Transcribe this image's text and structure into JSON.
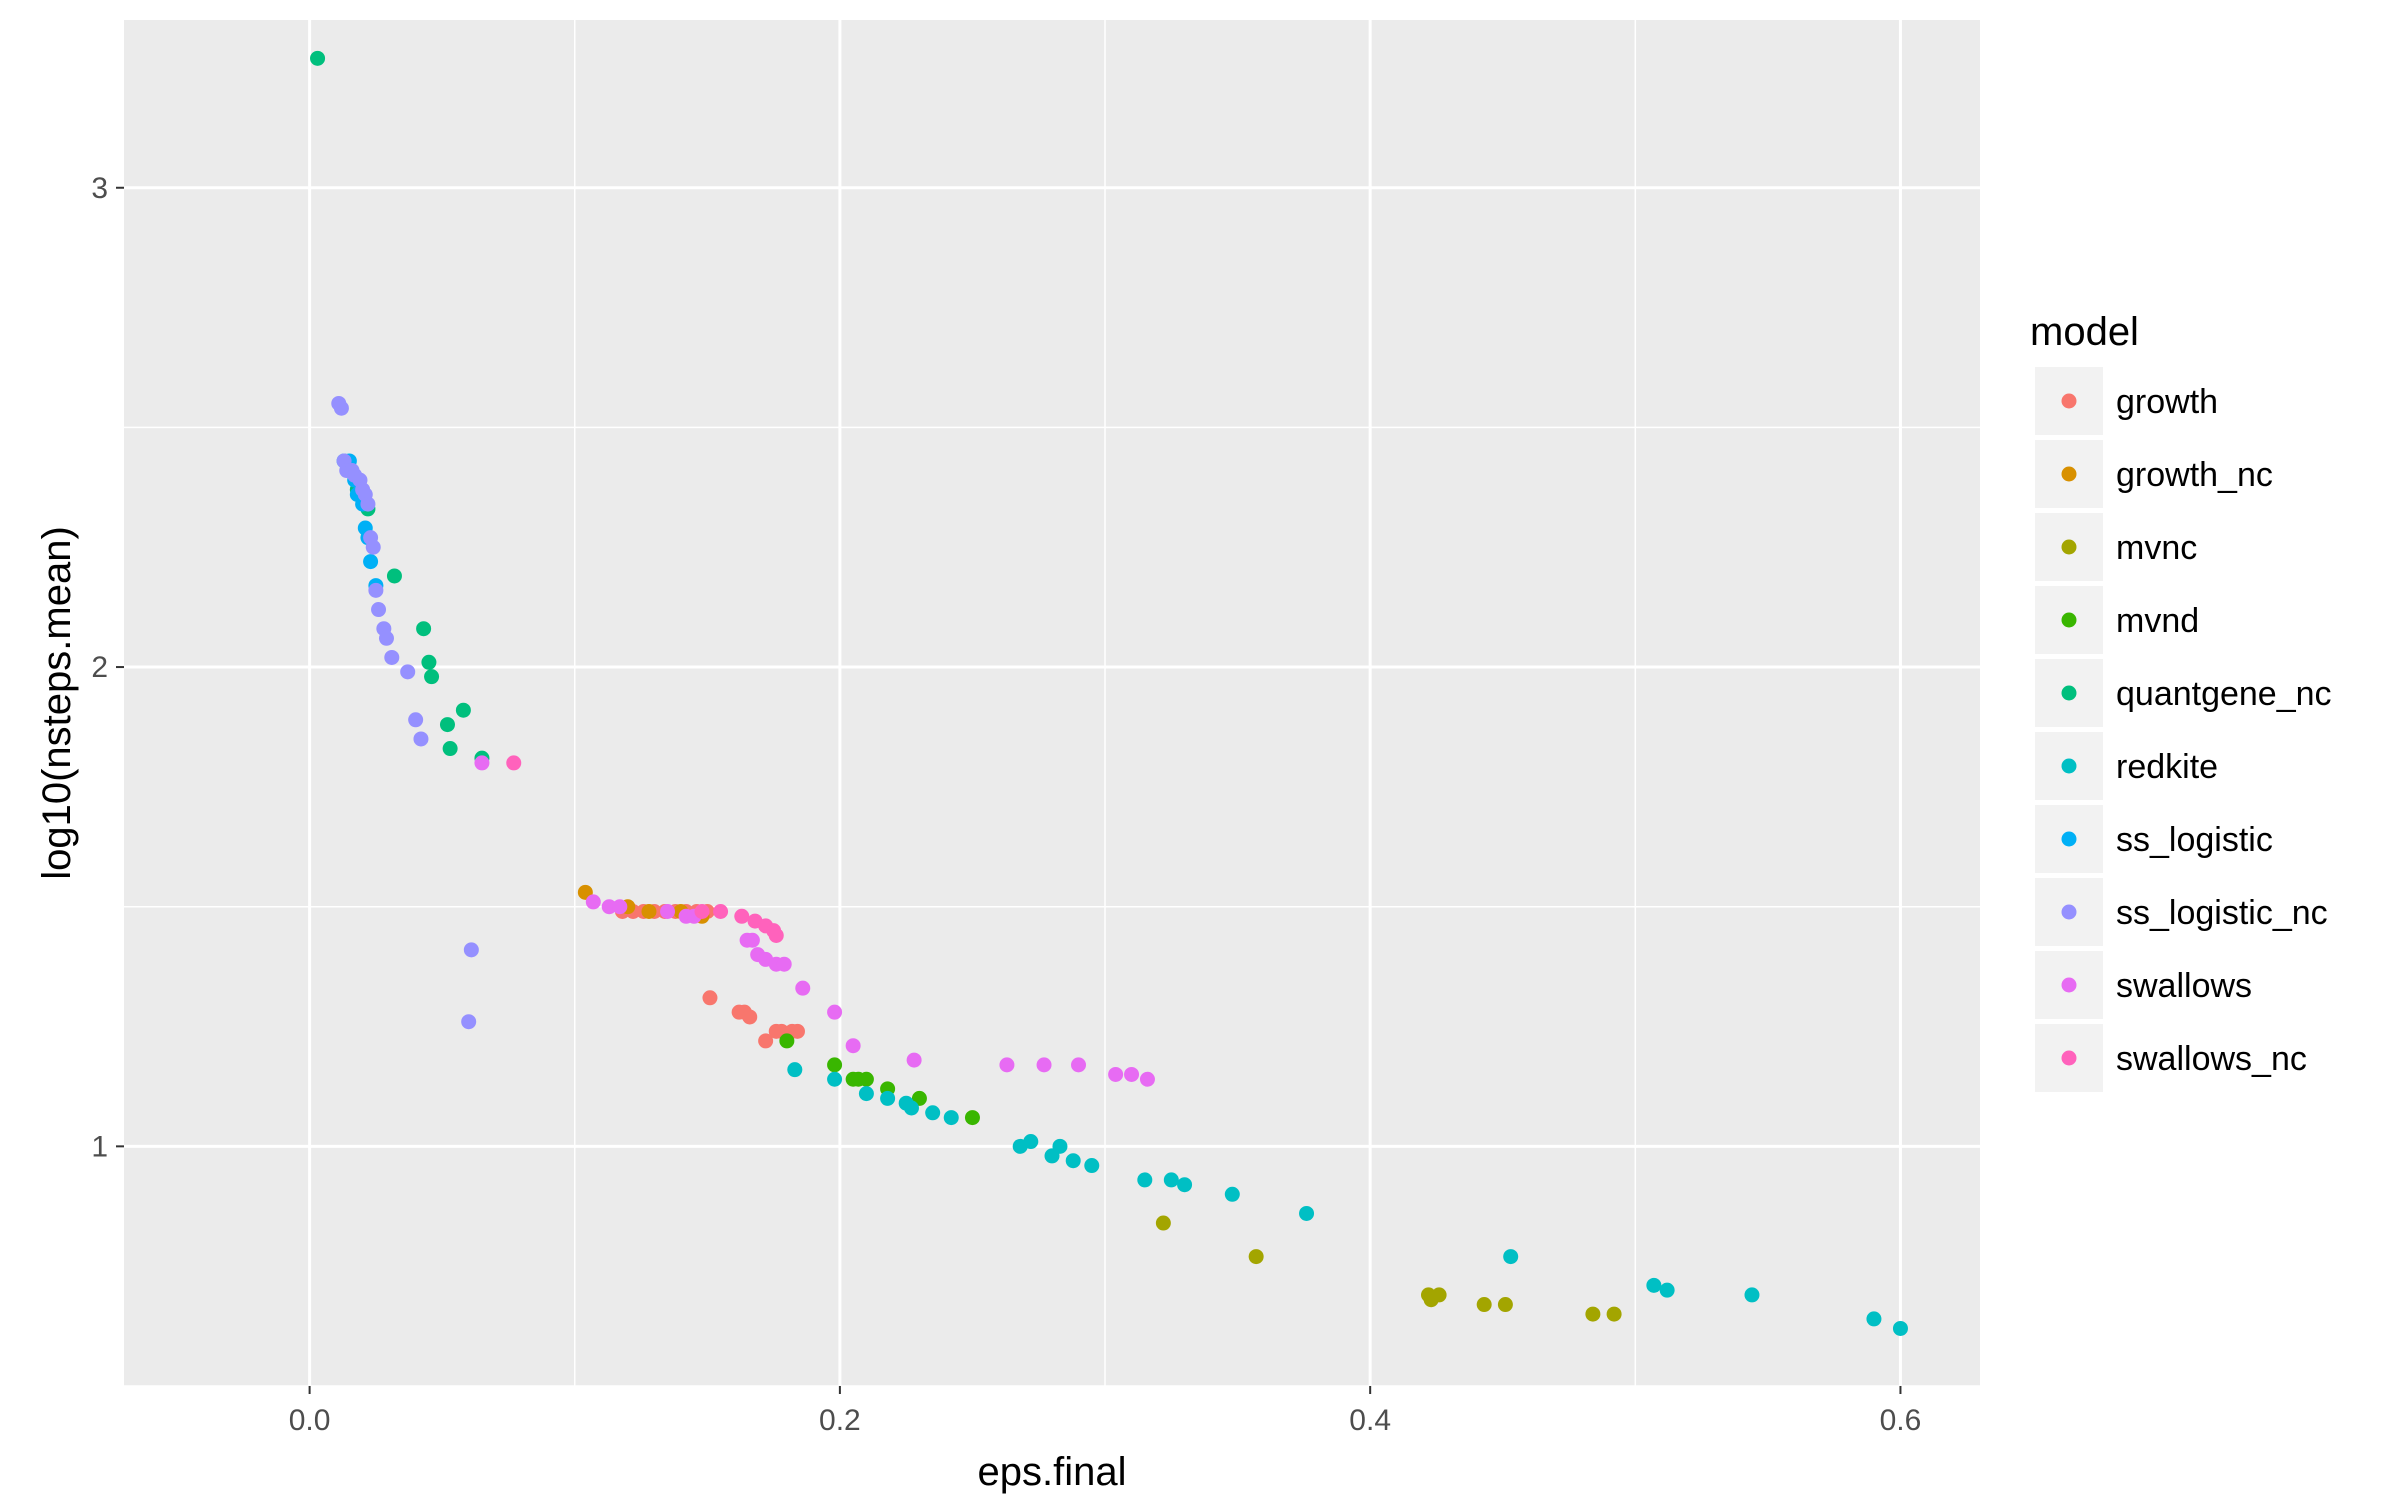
{
  "chart_data": {
    "type": "scatter",
    "xlabel": "eps.final",
    "ylabel": "log10(nsteps.mean)",
    "xlim": [
      -0.07,
      0.63
    ],
    "ylim": [
      0.5,
      3.35
    ],
    "x_ticks": [
      0.0,
      0.2,
      0.4,
      0.6
    ],
    "x_tick_labels": [
      "0.0",
      "0.2",
      "0.4",
      "0.6"
    ],
    "y_ticks": [
      1,
      2,
      3
    ],
    "y_tick_labels": [
      "1",
      "2",
      "3"
    ],
    "grid": true,
    "legend_title": "model",
    "legend_position": "right",
    "series": [
      {
        "name": "growth",
        "color": "#F8766D",
        "points": [
          [
            0.118,
            1.49
          ],
          [
            0.122,
            1.49
          ],
          [
            0.126,
            1.49
          ],
          [
            0.13,
            1.49
          ],
          [
            0.134,
            1.49
          ],
          [
            0.138,
            1.49
          ],
          [
            0.142,
            1.49
          ],
          [
            0.146,
            1.49
          ],
          [
            0.15,
            1.49
          ],
          [
            0.151,
            1.31
          ],
          [
            0.162,
            1.28
          ],
          [
            0.164,
            1.28
          ],
          [
            0.166,
            1.27
          ],
          [
            0.172,
            1.22
          ],
          [
            0.176,
            1.24
          ],
          [
            0.178,
            1.24
          ],
          [
            0.182,
            1.24
          ],
          [
            0.184,
            1.24
          ]
        ]
      },
      {
        "name": "growth_nc",
        "color": "#D89000",
        "points": [
          [
            0.104,
            1.53
          ],
          [
            0.12,
            1.5
          ],
          [
            0.128,
            1.49
          ],
          [
            0.14,
            1.49
          ],
          [
            0.148,
            1.48
          ]
        ]
      },
      {
        "name": "mvnc",
        "color": "#A3A500",
        "points": [
          [
            0.322,
            0.84
          ],
          [
            0.357,
            0.77
          ],
          [
            0.422,
            0.69
          ],
          [
            0.423,
            0.68
          ],
          [
            0.426,
            0.69
          ],
          [
            0.443,
            0.67
          ],
          [
            0.451,
            0.67
          ],
          [
            0.484,
            0.65
          ],
          [
            0.492,
            0.65
          ]
        ]
      },
      {
        "name": "mvnd",
        "color": "#39B600",
        "points": [
          [
            0.18,
            1.22
          ],
          [
            0.198,
            1.17
          ],
          [
            0.205,
            1.14
          ],
          [
            0.207,
            1.14
          ],
          [
            0.21,
            1.14
          ],
          [
            0.218,
            1.12
          ],
          [
            0.23,
            1.1
          ],
          [
            0.25,
            1.06
          ]
        ]
      },
      {
        "name": "quantgene_nc",
        "color": "#00BF7D",
        "points": [
          [
            0.003,
            3.27
          ],
          [
            0.018,
            2.37
          ],
          [
            0.022,
            2.33
          ],
          [
            0.032,
            2.19
          ],
          [
            0.043,
            2.08
          ],
          [
            0.045,
            2.01
          ],
          [
            0.046,
            1.98
          ],
          [
            0.052,
            1.88
          ],
          [
            0.053,
            1.83
          ],
          [
            0.058,
            1.91
          ],
          [
            0.065,
            1.81
          ]
        ]
      },
      {
        "name": "redkite",
        "color": "#00BFC4",
        "points": [
          [
            0.183,
            1.16
          ],
          [
            0.198,
            1.14
          ],
          [
            0.21,
            1.11
          ],
          [
            0.218,
            1.1
          ],
          [
            0.225,
            1.09
          ],
          [
            0.227,
            1.08
          ],
          [
            0.235,
            1.07
          ],
          [
            0.242,
            1.06
          ],
          [
            0.268,
            1.0
          ],
          [
            0.272,
            1.01
          ],
          [
            0.28,
            0.98
          ],
          [
            0.283,
            1.0
          ],
          [
            0.288,
            0.97
          ],
          [
            0.295,
            0.96
          ],
          [
            0.315,
            0.93
          ],
          [
            0.325,
            0.93
          ],
          [
            0.33,
            0.92
          ],
          [
            0.348,
            0.9
          ],
          [
            0.376,
            0.86
          ],
          [
            0.453,
            0.77
          ],
          [
            0.507,
            0.71
          ],
          [
            0.512,
            0.7
          ],
          [
            0.544,
            0.69
          ],
          [
            0.59,
            0.64
          ],
          [
            0.6,
            0.62
          ]
        ]
      },
      {
        "name": "ss_logistic",
        "color": "#00B0F6",
        "points": [
          [
            0.013,
            2.43
          ],
          [
            0.015,
            2.43
          ],
          [
            0.017,
            2.39
          ],
          [
            0.018,
            2.36
          ],
          [
            0.02,
            2.34
          ],
          [
            0.021,
            2.29
          ],
          [
            0.022,
            2.27
          ],
          [
            0.023,
            2.22
          ],
          [
            0.025,
            2.17
          ]
        ]
      },
      {
        "name": "ss_logistic_nc",
        "color": "#9590FF",
        "points": [
          [
            0.011,
            2.55
          ],
          [
            0.012,
            2.54
          ],
          [
            0.013,
            2.43
          ],
          [
            0.014,
            2.41
          ],
          [
            0.016,
            2.41
          ],
          [
            0.017,
            2.4
          ],
          [
            0.019,
            2.39
          ],
          [
            0.02,
            2.37
          ],
          [
            0.021,
            2.36
          ],
          [
            0.022,
            2.34
          ],
          [
            0.023,
            2.27
          ],
          [
            0.024,
            2.25
          ],
          [
            0.025,
            2.16
          ],
          [
            0.026,
            2.12
          ],
          [
            0.028,
            2.08
          ],
          [
            0.029,
            2.06
          ],
          [
            0.031,
            2.02
          ],
          [
            0.037,
            1.99
          ],
          [
            0.04,
            1.89
          ],
          [
            0.042,
            1.85
          ],
          [
            0.061,
            1.41
          ],
          [
            0.06,
            1.26
          ]
        ]
      },
      {
        "name": "swallows",
        "color": "#E76BF3",
        "points": [
          [
            0.107,
            1.51
          ],
          [
            0.113,
            1.5
          ],
          [
            0.117,
            1.5
          ],
          [
            0.135,
            1.49
          ],
          [
            0.142,
            1.48
          ],
          [
            0.145,
            1.48
          ],
          [
            0.165,
            1.43
          ],
          [
            0.167,
            1.43
          ],
          [
            0.169,
            1.4
          ],
          [
            0.172,
            1.39
          ],
          [
            0.176,
            1.38
          ],
          [
            0.179,
            1.38
          ],
          [
            0.186,
            1.33
          ],
          [
            0.198,
            1.28
          ],
          [
            0.205,
            1.21
          ],
          [
            0.228,
            1.18
          ],
          [
            0.263,
            1.17
          ],
          [
            0.277,
            1.17
          ],
          [
            0.29,
            1.17
          ],
          [
            0.304,
            1.15
          ],
          [
            0.31,
            1.15
          ],
          [
            0.316,
            1.14
          ],
          [
            0.065,
            1.8
          ]
        ]
      },
      {
        "name": "swallows_nc",
        "color": "#FF62BC",
        "points": [
          [
            0.077,
            1.8
          ],
          [
            0.148,
            1.49
          ],
          [
            0.155,
            1.49
          ],
          [
            0.163,
            1.48
          ],
          [
            0.168,
            1.47
          ],
          [
            0.172,
            1.46
          ],
          [
            0.175,
            1.45
          ],
          [
            0.176,
            1.44
          ]
        ]
      }
    ]
  }
}
